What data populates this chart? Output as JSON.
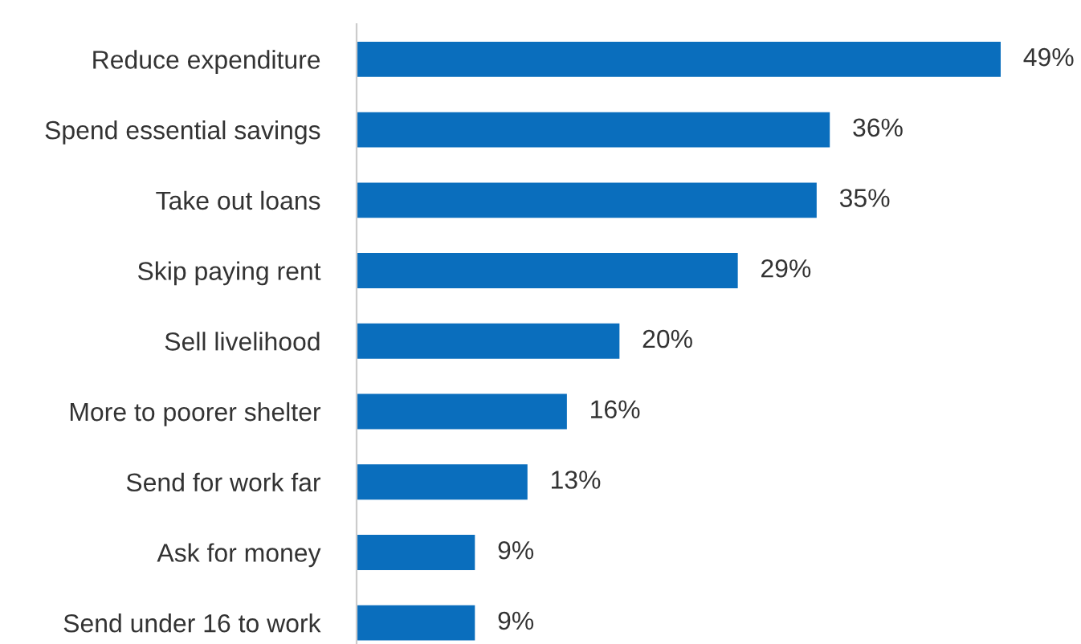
{
  "chart_data": {
    "type": "bar",
    "orientation": "horizontal",
    "categories": [
      "Reduce expenditure",
      "Spend essential savings",
      "Take out loans",
      "Skip paying rent",
      "Sell livelihood",
      "More to poorer shelter",
      "Send for work far",
      "Ask for money",
      "Send under 16 to work"
    ],
    "values": [
      49,
      36,
      35,
      29,
      20,
      16,
      13,
      9,
      9
    ],
    "value_labels": [
      "49%",
      "36%",
      "35%",
      "29%",
      "20%",
      "16%",
      "13%",
      "9%",
      "9%"
    ],
    "color": "#0a6ebd",
    "grid": false,
    "legend": false
  }
}
